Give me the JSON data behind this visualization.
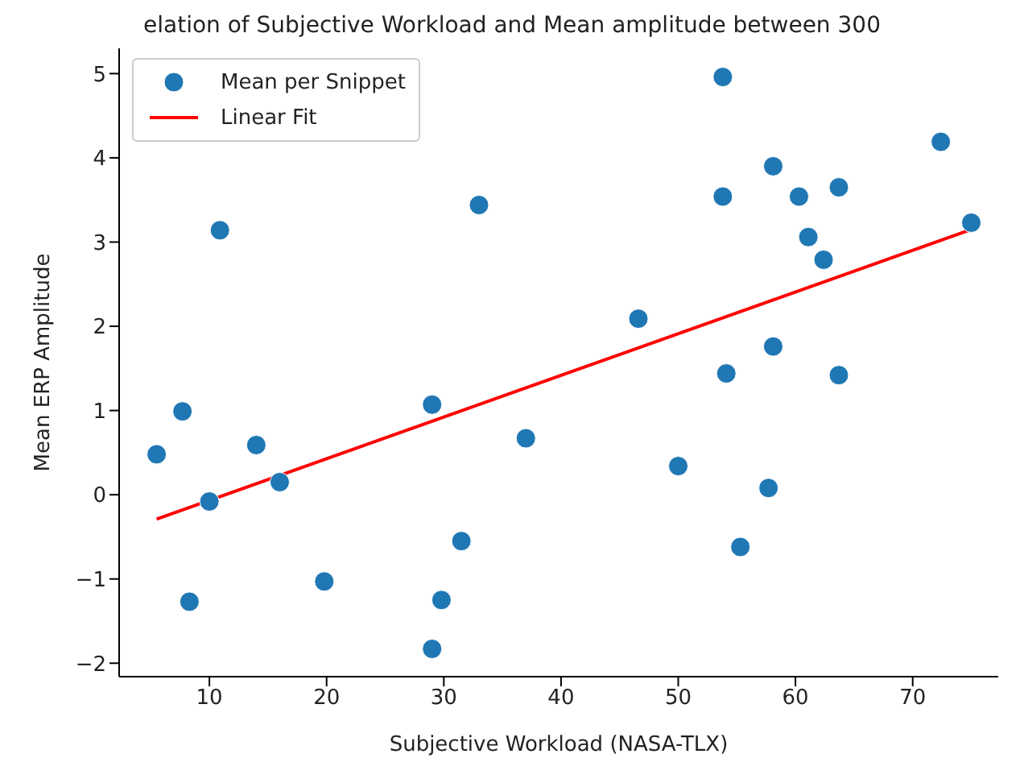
{
  "chart_data": {
    "type": "scatter",
    "title": "elation of Subjective Workload and Mean amplitude between 300",
    "xlabel": "Subjective Workload (NASA-TLX)",
    "ylabel": "Mean ERP Amplitude",
    "xlim": [
      2.3,
      77.3
    ],
    "xticks": [
      10,
      20,
      30,
      40,
      50,
      60,
      70
    ],
    "ylim": [
      -2.16,
      5.3
    ],
    "yticks": [
      -2,
      -1,
      0,
      1,
      2,
      3,
      4,
      5
    ],
    "grid": false,
    "legend": "top left",
    "series": [
      {
        "name": "Mean per Snippet",
        "marker": "circle",
        "color": "#1f77b4",
        "x": [
          5.5,
          7.7,
          8.3,
          10,
          10.9,
          14,
          16,
          19.8,
          29,
          29,
          29.8,
          31.5,
          33,
          37,
          46.6,
          50,
          53.8,
          53.8,
          54.1,
          55.3,
          57.7,
          58.1,
          58.1,
          60.3,
          61.1,
          62.4,
          63.7,
          63.7,
          72.4,
          75
        ],
        "values": [
          0.48,
          0.99,
          -1.27,
          -0.08,
          3.14,
          0.59,
          0.15,
          -1.03,
          1.07,
          -1.83,
          -1.25,
          -0.55,
          3.44,
          0.67,
          2.09,
          0.34,
          4.96,
          3.54,
          1.44,
          -0.62,
          0.08,
          3.9,
          1.76,
          3.54,
          3.06,
          2.79,
          3.65,
          1.42,
          4.19,
          3.23
        ]
      },
      {
        "name": "Linear Fit",
        "type": "line",
        "marker": "none",
        "color": "#ff0000",
        "line_style": "solid",
        "x": [
          5.5,
          75
        ],
        "values": [
          -0.29,
          3.15
        ]
      }
    ]
  }
}
